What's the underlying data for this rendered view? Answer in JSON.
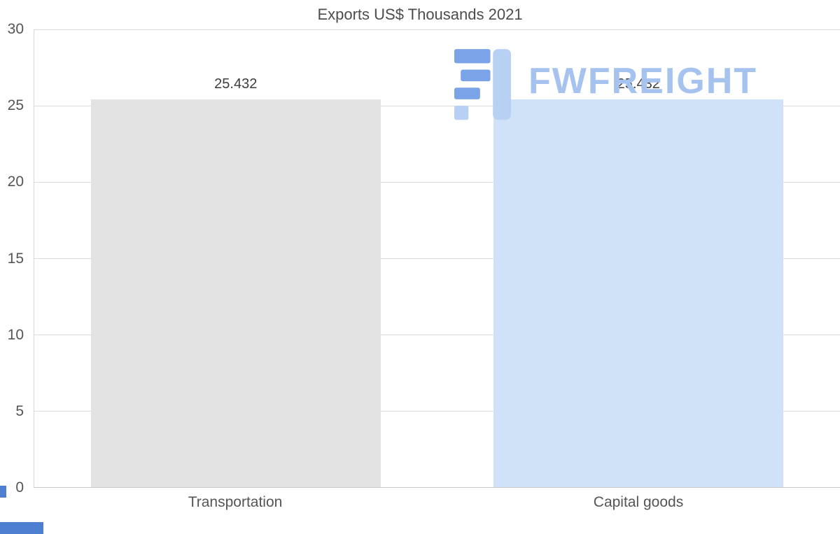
{
  "chart_data": {
    "type": "bar",
    "title": "Exports US$ Thousands 2021",
    "categories": [
      "Transportation",
      "Capital goods"
    ],
    "values": [
      25.432,
      25.432
    ],
    "value_labels": [
      "25.432",
      "25.432"
    ],
    "bar_colors": [
      "#e3e3e3",
      "#cfe2f8"
    ],
    "yticks": [
      30,
      25,
      20,
      15,
      10,
      5,
      0
    ],
    "ylim": [
      0,
      30
    ],
    "grid": true,
    "legend": false,
    "xlabel": "",
    "ylabel": ""
  },
  "watermark": {
    "text": "FWFREIGHT",
    "text_color": "#a6c3f0",
    "icon_dark_color": "#7aa3e8",
    "icon_light_color": "#b7d0f4"
  },
  "accents": {
    "bottom_left_color": "#4e7fd0"
  }
}
